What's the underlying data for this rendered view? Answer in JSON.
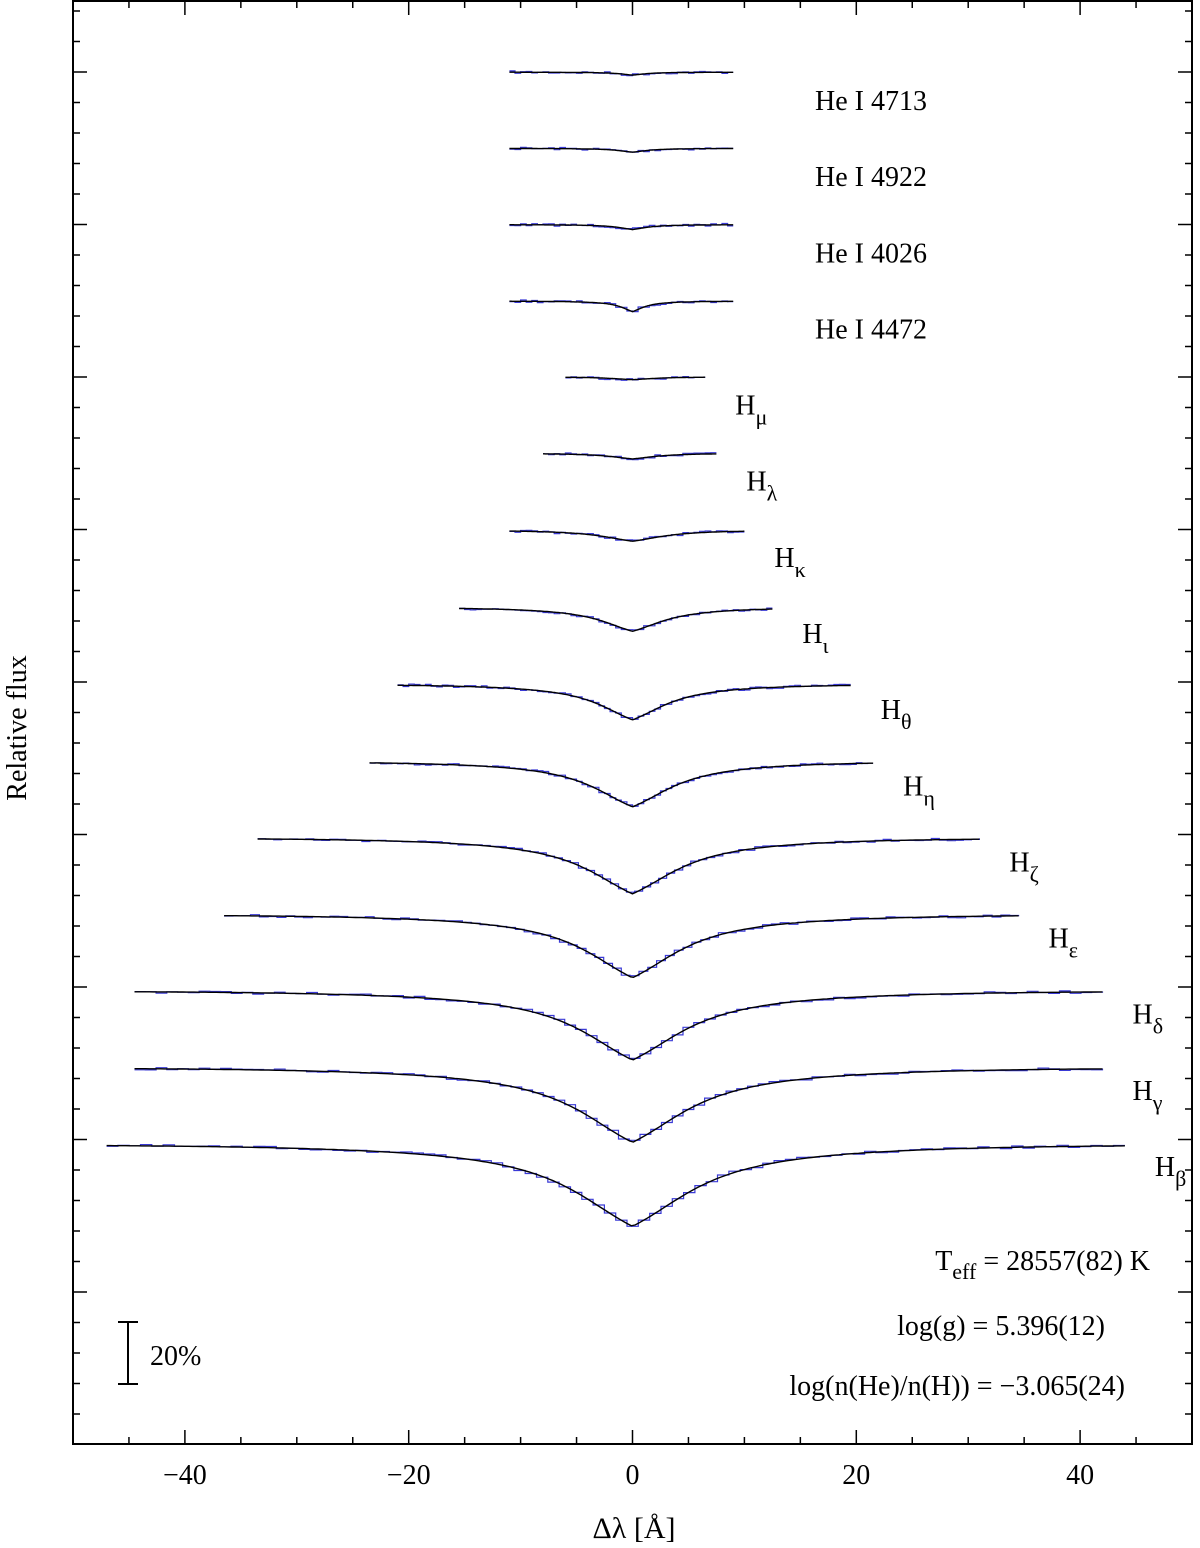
{
  "chart_data": {
    "type": "line",
    "xlabel": "Δλ [Å]",
    "ylabel": "Relative flux",
    "xlim": [
      -50,
      50
    ],
    "xticks": [
      -40,
      -20,
      0,
      20,
      40
    ],
    "y_major_tick_count": 10,
    "series_style": {
      "model": "#000000",
      "observed": "#3a3ad6"
    },
    "scale_bar": {
      "label": "20%"
    },
    "lines": [
      {
        "label": "He I 4713",
        "species": "He I",
        "wavelength": "4713",
        "x_range": [
          -11,
          9
        ],
        "depth_pct": 1.0,
        "width_A": 1.4
      },
      {
        "label": "He I 4922",
        "species": "He I",
        "wavelength": "4922",
        "x_range": [
          -11,
          9
        ],
        "depth_pct": 1.3,
        "width_A": 1.6
      },
      {
        "label": "He I 4026",
        "species": "He I",
        "wavelength": "4026",
        "x_range": [
          -11,
          9
        ],
        "depth_pct": 1.7,
        "width_A": 1.6
      },
      {
        "label": "He I 4472",
        "species": "He I",
        "wavelength": "4472",
        "x_range": [
          -11,
          9
        ],
        "depth_pct": 3.6,
        "width_A": 1.3
      },
      {
        "label": "Hμ",
        "species": "H",
        "sub": "μ",
        "x_range": [
          -6,
          6.5
        ],
        "depth_pct": 1.0,
        "width_A": 2.5
      },
      {
        "label": "Hλ",
        "species": "H",
        "sub": "λ",
        "x_range": [
          -8,
          7.5
        ],
        "depth_pct": 2.0,
        "width_A": 2.6
      },
      {
        "label": "Hκ",
        "species": "H",
        "sub": "κ",
        "x_range": [
          -11,
          10
        ],
        "depth_pct": 4.0,
        "width_A": 3.5
      },
      {
        "label": "Hι",
        "species": "H",
        "sub": "ι",
        "x_range": [
          -15.5,
          12.5
        ],
        "depth_pct": 8.5,
        "width_A": 3.6
      },
      {
        "label": "Hθ",
        "species": "H",
        "sub": "θ",
        "x_range": [
          -21,
          19.5
        ],
        "depth_pct": 12.5,
        "width_A": 3.9
      },
      {
        "label": "Hη",
        "species": "H",
        "sub": "η",
        "x_range": [
          -23.5,
          21.5
        ],
        "depth_pct": 16.0,
        "width_A": 4.6
      },
      {
        "label": "Hζ",
        "species": "H",
        "sub": "ζ",
        "x_range": [
          -33.5,
          31
        ],
        "depth_pct": 19.5,
        "width_A": 5.2
      },
      {
        "label": "Hε",
        "species": "H",
        "sub": "ε",
        "x_range": [
          -36.5,
          34.5
        ],
        "depth_pct": 22.0,
        "width_A": 5.5
      },
      {
        "label": "Hδ",
        "species": "H",
        "sub": "δ",
        "x_range": [
          -44.5,
          42
        ],
        "depth_pct": 24.0,
        "width_A": 6.0
      },
      {
        "label": "Hγ",
        "species": "H",
        "sub": "γ",
        "x_range": [
          -44.5,
          42
        ],
        "depth_pct": 26.0,
        "width_A": 6.3
      },
      {
        "label": "Hβ",
        "species": "H",
        "sub": "β",
        "x_range": [
          -47,
          44
        ],
        "depth_pct": 28.5,
        "width_A": 6.8
      }
    ],
    "results": [
      {
        "parts": [
          {
            "t": "T"
          },
          {
            "t": "eff",
            "sub": true
          },
          {
            "t": " = 28557(82) K"
          }
        ]
      },
      {
        "parts": [
          {
            "t": "log(g)  = 5.396(12)"
          }
        ]
      },
      {
        "parts": [
          {
            "t": "log(n(He)/n(H)) = −3.065(24)"
          }
        ]
      }
    ]
  }
}
